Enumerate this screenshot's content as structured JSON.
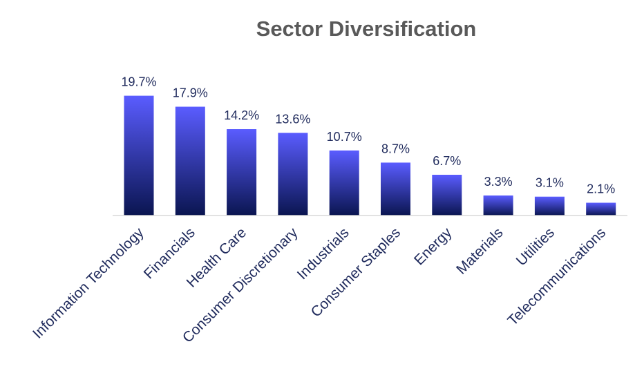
{
  "chart_data": {
    "type": "bar",
    "title": "Sector Diversification",
    "xlabel": "",
    "ylabel": "",
    "categories": [
      "Information Technology",
      "Financials",
      "Health Care",
      "Consumer Discretionary",
      "Industrials",
      "Consumer Staples",
      "Energy",
      "Materials",
      "Utilities",
      "Telecommunications"
    ],
    "values": [
      19.7,
      17.9,
      14.2,
      13.6,
      10.7,
      8.7,
      6.7,
      3.3,
      3.1,
      2.1
    ],
    "data_labels": [
      "19.7%",
      "17.9%",
      "14.2%",
      "13.6%",
      "10.7%",
      "8.7%",
      "6.7%",
      "3.3%",
      "3.1%",
      "2.1%"
    ],
    "ylim": [
      0,
      20
    ],
    "grid": false,
    "legend": "none",
    "colors": {
      "bar_top": "#5a5cff",
      "bar_bottom": "#0a1550",
      "axis": "#d9d9d9",
      "text": "#1f2a5c",
      "title": "#595959"
    }
  }
}
